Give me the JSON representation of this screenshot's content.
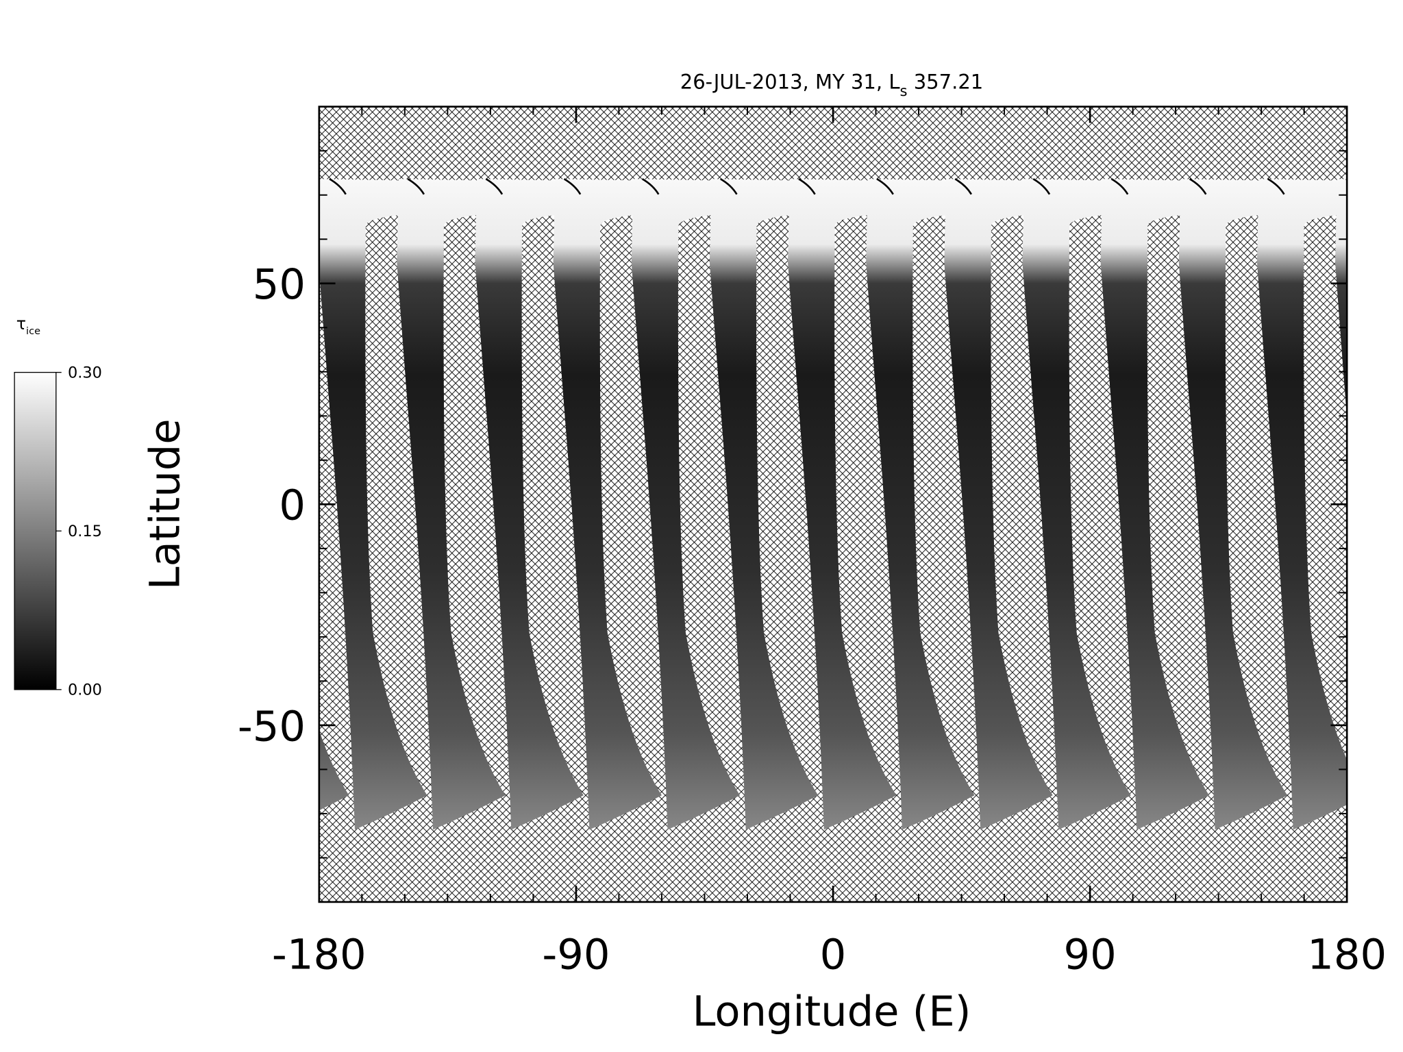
{
  "chart_data": {
    "type": "map",
    "title": [
      "26-JUL-2013, MY 31,  L",
      "s",
      " 357.21"
    ],
    "xlabel": "Longitude (E)",
    "ylabel": "Latitude",
    "xlim": [
      -180,
      180
    ],
    "xticks": [
      -180,
      -90,
      0,
      90,
      180
    ],
    "xminorticks": [
      -165,
      -150,
      -135,
      -120,
      -105,
      -75,
      -60,
      -45,
      -30,
      -15,
      15,
      30,
      45,
      60,
      75,
      105,
      120,
      135,
      150,
      165
    ],
    "ylim": [
      -90,
      90
    ],
    "yticks": [
      -50,
      0,
      50
    ],
    "yminorticks": [
      -80,
      -70,
      -60,
      -40,
      -30,
      -20,
      -10,
      10,
      20,
      30,
      40,
      60,
      70,
      80
    ],
    "colorbar": {
      "label": [
        "τ",
        "ice"
      ],
      "lim": [
        0,
        0.3
      ],
      "ticks": [
        {
          "value": 0,
          "label": "0.00"
        },
        {
          "value": 0.15,
          "label": "0.15"
        },
        {
          "value": 0.3,
          "label": "0.30"
        }
      ],
      "colors": [
        "#000000",
        "#ffffff"
      ]
    }
  }
}
